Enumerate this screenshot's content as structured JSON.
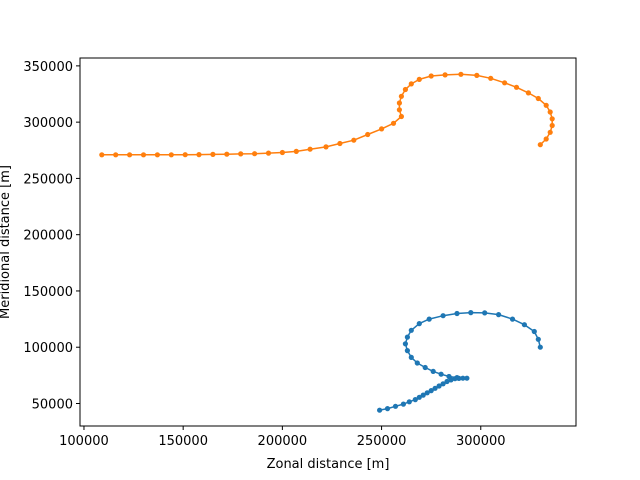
{
  "chart_data": {
    "type": "line",
    "title": "",
    "xlabel": "Zonal distance [m]",
    "ylabel": "Meridional distance [m]",
    "xlim": [
      98000,
      348000
    ],
    "ylim": [
      30000,
      357000
    ],
    "xticks": [
      100000,
      150000,
      200000,
      250000,
      300000
    ],
    "yticks": [
      50000,
      100000,
      150000,
      200000,
      250000,
      300000,
      350000
    ],
    "xtick_labels": [
      "100000",
      "150000",
      "200000",
      "250000",
      "300000"
    ],
    "ytick_labels": [
      "50000",
      "100000",
      "150000",
      "200000",
      "250000",
      "300000",
      "350000"
    ],
    "grid": false,
    "legend": "none",
    "marker": "circle",
    "series": [
      {
        "color": "#1f77b4",
        "points": [
          [
            330000,
            100000
          ],
          [
            329000,
            107000
          ],
          [
            327000,
            114000
          ],
          [
            322000,
            120000
          ],
          [
            316000,
            125000
          ],
          [
            309000,
            129000
          ],
          [
            302000,
            130500
          ],
          [
            295000,
            130800
          ],
          [
            288000,
            130000
          ],
          [
            281000,
            128000
          ],
          [
            274000,
            125000
          ],
          [
            269000,
            121000
          ],
          [
            265000,
            115000
          ],
          [
            263000,
            109000
          ],
          [
            262000,
            103000
          ],
          [
            263000,
            97000
          ],
          [
            265000,
            91000
          ],
          [
            268000,
            86000
          ],
          [
            272000,
            82000
          ],
          [
            276000,
            78500
          ],
          [
            280000,
            76000
          ],
          [
            284000,
            74000
          ],
          [
            288000,
            73000
          ],
          [
            293000,
            72500
          ],
          [
            291000,
            72500
          ],
          [
            289000,
            72300
          ],
          [
            287000,
            72000
          ],
          [
            285000,
            71000
          ],
          [
            283000,
            69500
          ],
          [
            281000,
            67500
          ],
          [
            279000,
            65500
          ],
          [
            277000,
            63500
          ],
          [
            275000,
            61500
          ],
          [
            273000,
            59500
          ],
          [
            271000,
            57500
          ],
          [
            269000,
            55500
          ],
          [
            267000,
            53500
          ],
          [
            264000,
            51500
          ],
          [
            261000,
            49500
          ],
          [
            257000,
            47500
          ],
          [
            253000,
            45500
          ],
          [
            249000,
            44000
          ]
        ]
      },
      {
        "color": "#ff7f0e",
        "points": [
          [
            330000,
            280000
          ],
          [
            333000,
            285000
          ],
          [
            335000,
            291000
          ],
          [
            336000,
            297000
          ],
          [
            336000,
            303000
          ],
          [
            335000,
            309000
          ],
          [
            333000,
            315000
          ],
          [
            329000,
            321000
          ],
          [
            324000,
            326000
          ],
          [
            318000,
            331000
          ],
          [
            312000,
            335000
          ],
          [
            305000,
            339000
          ],
          [
            298000,
            341500
          ],
          [
            290000,
            342500
          ],
          [
            282000,
            342000
          ],
          [
            275000,
            341000
          ],
          [
            269000,
            338000
          ],
          [
            265000,
            334000
          ],
          [
            262000,
            329000
          ],
          [
            260000,
            323000
          ],
          [
            259000,
            317000
          ],
          [
            259000,
            311000
          ],
          [
            260000,
            305000
          ],
          [
            256000,
            299000
          ],
          [
            250000,
            294000
          ],
          [
            243000,
            289000
          ],
          [
            236000,
            284000
          ],
          [
            229000,
            281000
          ],
          [
            222000,
            278000
          ],
          [
            214000,
            276000
          ],
          [
            207000,
            274000
          ],
          [
            200000,
            273000
          ],
          [
            193000,
            272500
          ],
          [
            186000,
            272000
          ],
          [
            179000,
            271800
          ],
          [
            172000,
            271500
          ],
          [
            165000,
            271300
          ],
          [
            158000,
            271200
          ],
          [
            151000,
            271100
          ],
          [
            144000,
            271000
          ],
          [
            137000,
            271000
          ],
          [
            130000,
            271000
          ],
          [
            123000,
            271000
          ],
          [
            116000,
            271000
          ],
          [
            109000,
            271000
          ]
        ]
      }
    ]
  }
}
